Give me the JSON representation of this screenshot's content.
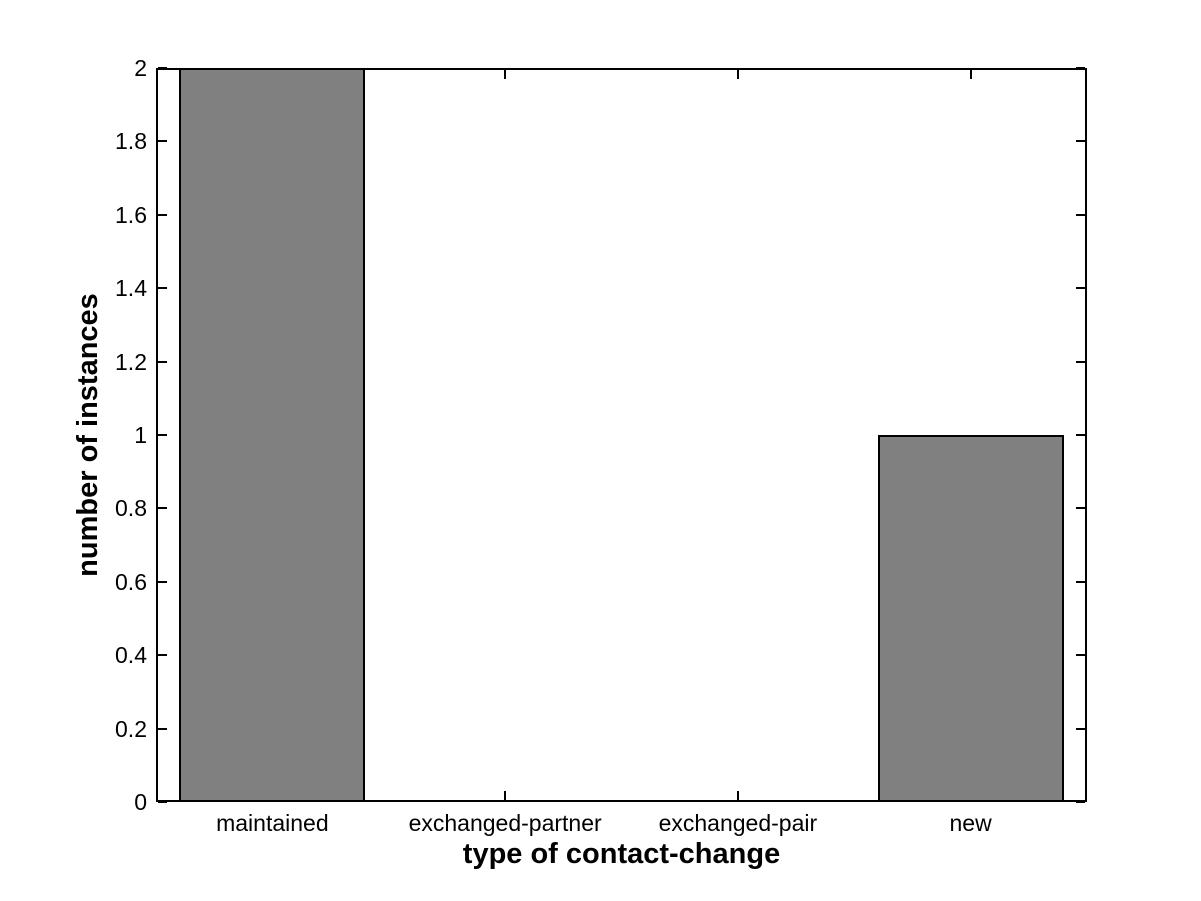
{
  "chart_data": {
    "type": "bar",
    "title": "",
    "xlabel": "type of contact-change",
    "ylabel": "number of instances",
    "categories": [
      "maintained",
      "exchanged-partner",
      "exchanged-pair",
      "new"
    ],
    "values": [
      2,
      0,
      0,
      1
    ],
    "ylim": [
      0,
      2
    ],
    "ytick_values": [
      0,
      0.2,
      0.4,
      0.6,
      0.8,
      1,
      1.2,
      1.4,
      1.6,
      1.8,
      2
    ],
    "ytick_labels": [
      "0",
      "0.2",
      "0.4",
      "0.6",
      "0.8",
      "1",
      "1.2",
      "1.4",
      "1.6",
      "1.8",
      "2"
    ],
    "bar_width_fraction": 0.8,
    "bar_color": "#808080",
    "bar_edge_color": "#000000",
    "axis_color": "#000000",
    "background_color": "#ffffff",
    "grid": false,
    "legend": "none",
    "tick_direction": "in",
    "box": "on"
  }
}
